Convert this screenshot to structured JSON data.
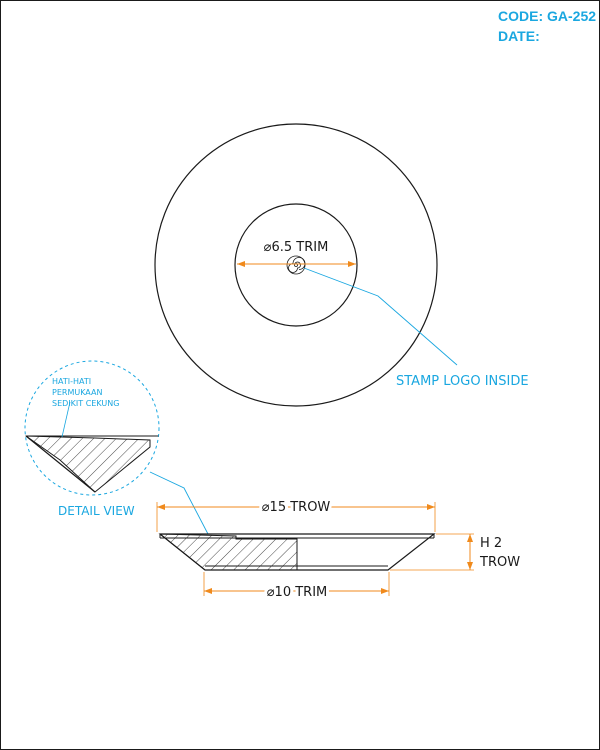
{
  "title_block": {
    "code": "CODE: GA-252",
    "date": "DATE:"
  },
  "top_view": {
    "inner_dimension": "⌀6.5 TRIM",
    "callout": "STAMP LOGO INSIDE"
  },
  "detail": {
    "note_line1": "HATI-HATI",
    "note_line2": "PERMUKAAN",
    "note_line3": "SEDIKIT CEKUNG",
    "label": "DETAIL VIEW"
  },
  "side_view": {
    "top_dimension": "⌀15 TROW",
    "height_line1": "H 2",
    "height_line2": "TROW",
    "bottom_dimension": "⌀10 TRIM"
  },
  "colors": {
    "line": "#1a1a1a",
    "dimension": "#f08a1c",
    "annotation": "#1aa7e0"
  }
}
